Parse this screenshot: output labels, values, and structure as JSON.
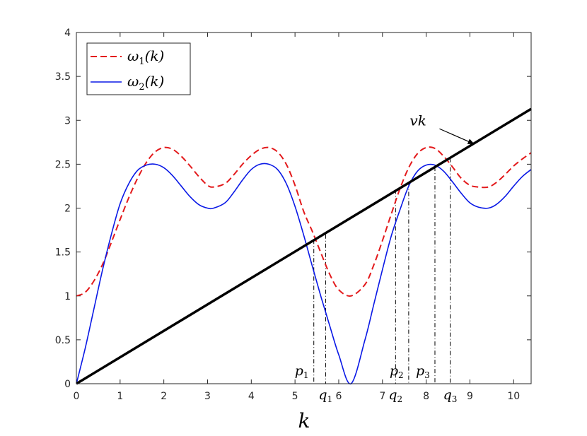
{
  "chart_data": {
    "type": "line",
    "xlabel": "k",
    "ylabel": "",
    "xlim": [
      0,
      10.4
    ],
    "ylim": [
      0,
      4
    ],
    "x_ticks": [
      0,
      1,
      2,
      3,
      4,
      5,
      6,
      7,
      8,
      9,
      10
    ],
    "y_ticks": [
      0,
      0.5,
      1,
      1.5,
      2,
      2.5,
      3,
      3.5,
      4
    ],
    "x_tick_labels": [
      "0",
      "1",
      "2",
      "3",
      "4",
      "5",
      "6",
      "7",
      "8",
      "9",
      "10"
    ],
    "y_tick_labels": [
      "0",
      "0.5",
      "1",
      "1.5",
      "2",
      "2.5",
      "3",
      "3.5",
      "4"
    ],
    "grid": false,
    "legend_position": "top-left",
    "series": [
      {
        "name": "ω1(k)",
        "label_base": "ω",
        "label_sub": "1",
        "label_arg": "(k)",
        "style": "dashed",
        "color": "#e31a1c",
        "x": [
          0,
          0.2,
          0.4,
          0.6,
          0.8,
          1,
          1.2,
          1.4,
          1.6,
          1.8,
          2,
          2.2,
          2.4,
          2.6,
          2.8,
          3,
          3.14,
          3.4,
          3.6,
          3.8,
          4,
          4.2,
          4.4,
          4.6,
          4.8,
          5,
          5.2,
          5.4,
          5.6,
          5.8,
          6,
          6.28,
          6.6,
          6.8,
          7,
          7.2,
          7.4,
          7.6,
          7.8,
          8,
          8.2,
          8.4,
          8.6,
          8.8,
          9,
          9.2,
          9.42,
          9.6,
          9.8,
          10,
          10.2,
          10.4
        ],
        "y": [
          1.0,
          1.04,
          1.17,
          1.36,
          1.61,
          1.87,
          2.12,
          2.34,
          2.52,
          2.64,
          2.69,
          2.67,
          2.59,
          2.48,
          2.36,
          2.26,
          2.24,
          2.28,
          2.38,
          2.5,
          2.6,
          2.67,
          2.69,
          2.64,
          2.5,
          2.26,
          1.96,
          1.73,
          1.48,
          1.24,
          1.07,
          1.0,
          1.13,
          1.35,
          1.63,
          1.93,
          2.22,
          2.46,
          2.62,
          2.69,
          2.68,
          2.59,
          2.47,
          2.34,
          2.26,
          2.24,
          2.24,
          2.29,
          2.38,
          2.48,
          2.56,
          2.63
        ]
      },
      {
        "name": "ω2(k)",
        "label_base": "ω",
        "label_sub": "2",
        "label_arg": "(k)",
        "style": "solid",
        "color": "#0a19e6",
        "x": [
          0,
          0.2,
          0.4,
          0.6,
          0.8,
          1,
          1.2,
          1.4,
          1.6,
          1.8,
          2,
          2.2,
          2.4,
          2.6,
          2.8,
          3,
          3.14,
          3.4,
          3.6,
          3.8,
          4,
          4.2,
          4.4,
          4.6,
          4.8,
          5,
          5.2,
          5.4,
          5.6,
          5.8,
          6,
          6.28,
          6.6,
          6.8,
          7,
          7.2,
          7.4,
          7.6,
          7.8,
          8,
          8.2,
          8.4,
          8.6,
          8.8,
          9,
          9.2,
          9.42,
          9.6,
          9.8,
          10,
          10.2,
          10.4
        ],
        "y": [
          0.0,
          0.4,
          0.85,
          1.3,
          1.7,
          2.05,
          2.28,
          2.43,
          2.49,
          2.5,
          2.46,
          2.37,
          2.25,
          2.13,
          2.04,
          2.0,
          2.0,
          2.06,
          2.18,
          2.32,
          2.44,
          2.5,
          2.5,
          2.44,
          2.28,
          2.02,
          1.69,
          1.33,
          0.98,
          0.65,
          0.33,
          0.0,
          0.5,
          0.9,
          1.3,
          1.68,
          1.98,
          2.25,
          2.42,
          2.49,
          2.49,
          2.42,
          2.3,
          2.17,
          2.06,
          2.01,
          2.0,
          2.04,
          2.13,
          2.25,
          2.36,
          2.44
        ]
      },
      {
        "name": "vk",
        "style": "solid-thick",
        "color": "#000000",
        "x": [
          0,
          10.4
        ],
        "y": [
          0,
          3.13
        ]
      }
    ],
    "vertical_markers": [
      {
        "x": 5.43,
        "y": 1.64,
        "label": "p",
        "sub": "1",
        "label_pos": "below-left"
      },
      {
        "x": 5.7,
        "y": 1.7,
        "label": "q",
        "sub": "1",
        "label_pos": "below"
      },
      {
        "x": 7.3,
        "y": 2.21,
        "label": "q",
        "sub": "2",
        "label_pos": "below"
      },
      {
        "x": 7.6,
        "y": 2.29,
        "label": "p",
        "sub": "2",
        "label_pos": "below-left"
      },
      {
        "x": 8.2,
        "y": 2.47,
        "label": "p",
        "sub": "3",
        "label_pos": "below-left"
      },
      {
        "x": 8.55,
        "y": 2.57,
        "label": "q",
        "sub": "3",
        "label_pos": "below"
      }
    ],
    "annotations": [
      {
        "text": "vk",
        "x": 7.9,
        "y": 3.0,
        "arrow_to_x": 9.1,
        "arrow_to_y": 2.73
      }
    ]
  }
}
